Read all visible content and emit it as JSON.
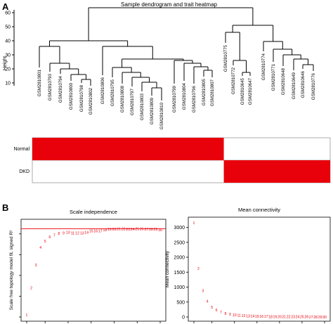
{
  "panel_a": {
    "letter": "A",
    "title": "Sample dendrogram and trait heatmap",
    "y_label": "Height",
    "y_ticks": [
      "60",
      "50",
      "40",
      "30",
      "20",
      "10"
    ],
    "samples": [
      "GSM2810801",
      "GSM2810793",
      "GSM2810794",
      "GSM2810800",
      "GSM2810798",
      "GSM2810802",
      "GSM2810806",
      "GSM2810795",
      "GSM2810808",
      "GSM2810797",
      "GSM2810803",
      "GSM2810809",
      "GSM2810810",
      "GSM2810799",
      "GSM2810804",
      "GSM2810796",
      "GSM2810805",
      "GSM2810807",
      "GSM2810775",
      "GSM2810772",
      "GSM2810645",
      "GSM2810647",
      "GSM2810774",
      "GSM2810771",
      "GSM2810648",
      "GSM2810649",
      "GSM2810646",
      "GSM2810776"
    ],
    "traits": [
      "Normal",
      "DKD"
    ],
    "heat_color": "#e8000b",
    "normal_samples": 18,
    "dkd_samples": 10
  },
  "panel_b": {
    "letter": "B",
    "chart_data": [
      {
        "type": "scatter",
        "title": "Scale independence",
        "ylabel": "Scale free topology model fit, signed R²",
        "xlabel": "",
        "marker": "text-label",
        "color": "#e8000b",
        "reference_line": 0.85,
        "ylim": [
          0.0,
          0.9
        ],
        "points": [
          {
            "label": "1",
            "x": 1,
            "y": 0.02
          },
          {
            "label": "2",
            "x": 2,
            "y": 0.28
          },
          {
            "label": "3",
            "x": 3,
            "y": 0.5
          },
          {
            "label": "4",
            "x": 4,
            "y": 0.67
          },
          {
            "label": "5",
            "x": 5,
            "y": 0.73
          },
          {
            "label": "6",
            "x": 6,
            "y": 0.77
          },
          {
            "label": "7",
            "x": 7,
            "y": 0.79
          },
          {
            "label": "8",
            "x": 8,
            "y": 0.805
          },
          {
            "label": "9",
            "x": 9,
            "y": 0.81
          },
          {
            "label": "10",
            "x": 10,
            "y": 0.815
          },
          {
            "label": "11",
            "x": 11,
            "y": 0.81
          },
          {
            "label": "12",
            "x": 12,
            "y": 0.81
          },
          {
            "label": "13",
            "x": 13,
            "y": 0.81
          },
          {
            "label": "14",
            "x": 14,
            "y": 0.815
          },
          {
            "label": "15",
            "x": 15,
            "y": 0.83
          },
          {
            "label": "16",
            "x": 16,
            "y": 0.83
          },
          {
            "label": "17",
            "x": 17,
            "y": 0.83
          },
          {
            "label": "18",
            "x": 18,
            "y": 0.84
          },
          {
            "label": "19",
            "x": 19,
            "y": 0.845
          },
          {
            "label": "20",
            "x": 20,
            "y": 0.845
          },
          {
            "label": "21",
            "x": 21,
            "y": 0.85
          },
          {
            "label": "22",
            "x": 22,
            "y": 0.85
          },
          {
            "label": "23",
            "x": 23,
            "y": 0.845
          },
          {
            "label": "24",
            "x": 24,
            "y": 0.845
          },
          {
            "label": "25",
            "x": 25,
            "y": 0.85
          },
          {
            "label": "26",
            "x": 26,
            "y": 0.85
          },
          {
            "label": "27",
            "x": 27,
            "y": 0.845
          },
          {
            "label": "28",
            "x": 28,
            "y": 0.845
          },
          {
            "label": "29",
            "x": 29,
            "y": 0.845
          },
          {
            "label": "30",
            "x": 30,
            "y": 0.84
          }
        ]
      },
      {
        "type": "scatter",
        "title": "Mean connectivity",
        "ylabel": "Mean connectivity",
        "xlabel": "",
        "marker": "text-label",
        "color": "#e8000b",
        "ylim": [
          0,
          3200
        ],
        "y_ticks": [
          "3000",
          "2500",
          "2000",
          "1500",
          "1000",
          "500",
          "0"
        ],
        "points": [
          {
            "label": "1",
            "x": 1,
            "y": 3150
          },
          {
            "label": "2",
            "x": 2,
            "y": 1620
          },
          {
            "label": "3",
            "x": 3,
            "y": 880
          },
          {
            "label": "4",
            "x": 4,
            "y": 530
          },
          {
            "label": "5",
            "x": 5,
            "y": 330
          },
          {
            "label": "6",
            "x": 6,
            "y": 230
          },
          {
            "label": "7",
            "x": 7,
            "y": 160
          },
          {
            "label": "8",
            "x": 8,
            "y": 120
          },
          {
            "label": "9",
            "x": 9,
            "y": 90
          },
          {
            "label": "10",
            "x": 10,
            "y": 70
          },
          {
            "label": "11",
            "x": 11,
            "y": 55
          },
          {
            "label": "12",
            "x": 12,
            "y": 45
          },
          {
            "label": "13",
            "x": 13,
            "y": 35
          },
          {
            "label": "14",
            "x": 14,
            "y": 30
          },
          {
            "label": "15",
            "x": 15,
            "y": 25
          },
          {
            "label": "16",
            "x": 16,
            "y": 20
          },
          {
            "label": "17",
            "x": 17,
            "y": 18
          },
          {
            "label": "18",
            "x": 18,
            "y": 15
          },
          {
            "label": "19",
            "x": 19,
            "y": 13
          },
          {
            "label": "20",
            "x": 20,
            "y": 11
          },
          {
            "label": "21",
            "x": 21,
            "y": 10
          },
          {
            "label": "22",
            "x": 22,
            "y": 9
          },
          {
            "label": "23",
            "x": 23,
            "y": 8
          },
          {
            "label": "24",
            "x": 24,
            "y": 7
          },
          {
            "label": "25",
            "x": 25,
            "y": 6
          },
          {
            "label": "26",
            "x": 26,
            "y": 6
          },
          {
            "label": "27",
            "x": 27,
            "y": 5
          },
          {
            "label": "28",
            "x": 28,
            "y": 5
          },
          {
            "label": "29",
            "x": 29,
            "y": 4
          },
          {
            "label": "30",
            "x": 30,
            "y": 4
          }
        ]
      }
    ]
  }
}
